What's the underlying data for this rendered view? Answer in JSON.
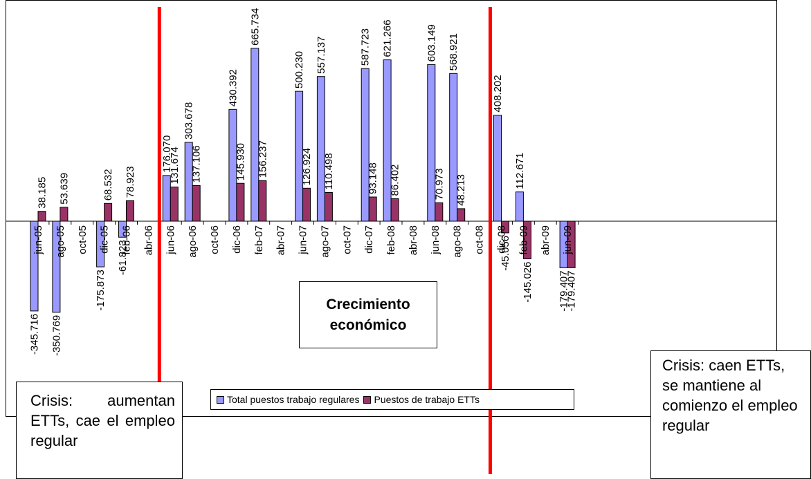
{
  "chart_data": {
    "type": "bar",
    "categories": [
      "jun-05",
      "ago-05",
      "oct-05",
      "dic-05",
      "feb-06",
      "abr-06",
      "jun-06",
      "ago-06",
      "oct-06",
      "dic-06",
      "feb-07",
      "abr-07",
      "jun-07",
      "ago-07",
      "oct-07",
      "dic-07",
      "feb-08",
      "abr-08",
      "jun-08",
      "ago-08",
      "oct-08",
      "dic-08",
      "feb-09",
      "abr-09",
      "jun-09"
    ],
    "series": [
      {
        "name": "Total puestos trabajo regulares",
        "color": "#9999ff",
        "points": [
          {
            "category": "jun-05",
            "value": -345.716,
            "label": "-345.716"
          },
          {
            "category": "ago-05",
            "value": -350.769,
            "label": "-350.769"
          },
          {
            "category": "dic-05",
            "value": -175.873,
            "label": "-175.873"
          },
          {
            "category": "feb-06",
            "value": -61.823,
            "label": "-61.823"
          },
          {
            "category": "jun-06",
            "value": 176.07,
            "label": "176.070"
          },
          {
            "category": "ago-06",
            "value": 303.678,
            "label": "303.678"
          },
          {
            "category": "dic-06",
            "value": 430.392,
            "label": "430.392"
          },
          {
            "category": "feb-07",
            "value": 665.734,
            "label": "665.734"
          },
          {
            "category": "jun-07",
            "value": 500.23,
            "label": "500.230"
          },
          {
            "category": "ago-07",
            "value": 557.137,
            "label": "557.137"
          },
          {
            "category": "dic-07",
            "value": 587.723,
            "label": "587.723"
          },
          {
            "category": "feb-08",
            "value": 621.266,
            "label": "621.266"
          },
          {
            "category": "jun-08",
            "value": 603.149,
            "label": "603.149"
          },
          {
            "category": "ago-08",
            "value": 568.921,
            "label": "568.921"
          },
          {
            "category": "dic-08",
            "value": 408.202,
            "label": "408.202"
          },
          {
            "category": "feb-09",
            "value": 112.671,
            "label": "112.671"
          },
          {
            "category": "jun-09",
            "value": -179.407,
            "label": "-179.407"
          }
        ]
      },
      {
        "name": "Puestos de trabajo ETTs",
        "color": "#993366",
        "points": [
          {
            "category": "jun-05",
            "value": 38.185,
            "label": "38.185"
          },
          {
            "category": "ago-05",
            "value": 53.639,
            "label": "53.639"
          },
          {
            "category": "dic-05",
            "value": 68.532,
            "label": "68.532"
          },
          {
            "category": "feb-06",
            "value": 78.923,
            "label": "78.923"
          },
          {
            "category": "jun-06",
            "value": 131.674,
            "label": "131.674"
          },
          {
            "category": "ago-06",
            "value": 137.106,
            "label": "137.106"
          },
          {
            "category": "dic-06",
            "value": 145.93,
            "label": "145.930"
          },
          {
            "category": "feb-07",
            "value": 156.237,
            "label": "156.237"
          },
          {
            "category": "jun-07",
            "value": 126.924,
            "label": "126.924"
          },
          {
            "category": "ago-07",
            "value": 110.498,
            "label": "110.498"
          },
          {
            "category": "dic-07",
            "value": 93.148,
            "label": "93.148"
          },
          {
            "category": "feb-08",
            "value": 86.402,
            "label": "86.402"
          },
          {
            "category": "jun-08",
            "value": 70.973,
            "label": "70.973"
          },
          {
            "category": "ago-08",
            "value": 48.213,
            "label": "48.213"
          },
          {
            "category": "dic-08",
            "value": -45.056,
            "label": "-45.056"
          },
          {
            "category": "feb-09",
            "value": -145.026,
            "label": "-145.026"
          },
          {
            "category": "jun-09",
            "value": -179.407,
            "label": "-179.407"
          }
        ]
      }
    ],
    "ylim": [
      -360,
      680
    ],
    "legend_position": "bottom",
    "divider_color": "#ff0000",
    "dividers_after": [
      "abr-06",
      "oct-08"
    ]
  },
  "annotations": {
    "center": "Crecimiento económico",
    "left": "Crisis: aumentan ETTs, cae el empleo regular",
    "right": "Crisis: caen ETTs, se mantiene al comienzo el empleo regular"
  }
}
